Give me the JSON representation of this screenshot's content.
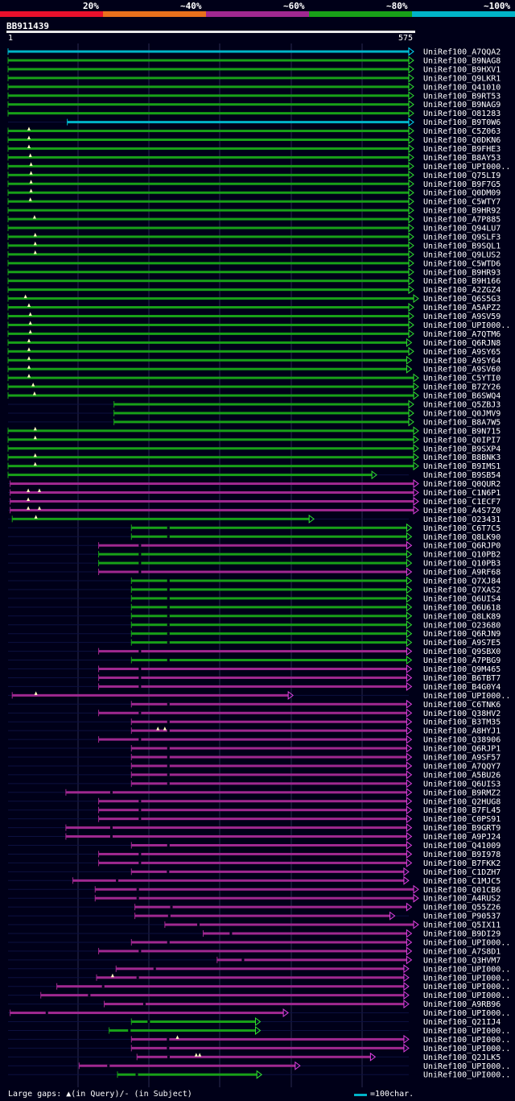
{
  "legend": [
    {
      "label": "20%",
      "color": "#e8102c"
    },
    {
      "label": "~40%",
      "color": "#e8701c"
    },
    {
      "label": "~60%",
      "color": "#a02890"
    },
    {
      "label": "~80%",
      "color": "#18a018"
    },
    {
      "label": "~100%",
      "color": "#00b4c8"
    }
  ],
  "query": {
    "name": "BB911439",
    "start": "1",
    "end": "575"
  },
  "footer": {
    "gaps_text": "Large gaps: ▲(in Query)/- (in Subject)",
    "scale_text": "=100char."
  },
  "hits": [
    {
      "name": "UniRef100_A7QQA2",
      "s": 0,
      "e": 575,
      "c": "cyan",
      "sub": 0,
      "q": []
    },
    {
      "name": "UniRef100_B9NAG8",
      "s": 0,
      "e": 575,
      "c": "green",
      "sub": 0,
      "q": []
    },
    {
      "name": "UniRef100_B9HXV1",
      "s": 0,
      "e": 575,
      "c": "green",
      "sub": 0,
      "q": []
    },
    {
      "name": "UniRef100_Q9LKR1",
      "s": 0,
      "e": 575,
      "c": "green",
      "sub": 0,
      "q": []
    },
    {
      "name": "UniRef100_Q41010",
      "s": 0,
      "e": 575,
      "c": "green",
      "sub": 0,
      "q": []
    },
    {
      "name": "UniRef100_B9RT53",
      "s": 0,
      "e": 575,
      "c": "green",
      "sub": 0,
      "q": []
    },
    {
      "name": "UniRef100_B9NAG9",
      "s": 0,
      "e": 575,
      "c": "green",
      "sub": 0,
      "q": []
    },
    {
      "name": "UniRef100_O81283",
      "s": 0,
      "e": 575,
      "c": "green",
      "sub": 0,
      "q": []
    },
    {
      "name": "UniRef100_B9T0W6",
      "s": 85,
      "e": 575,
      "c": "cyan",
      "sub": 0,
      "q": []
    },
    {
      "name": "UniRef100_C5Z063",
      "s": 0,
      "e": 575,
      "c": "green",
      "sub": 0,
      "q": [
        30
      ]
    },
    {
      "name": "UniRef100_Q0DKN6",
      "s": 0,
      "e": 575,
      "c": "green",
      "sub": 0,
      "q": [
        30
      ]
    },
    {
      "name": "UniRef100_B9FHE3",
      "s": 0,
      "e": 575,
      "c": "green",
      "sub": 0,
      "q": [
        30
      ]
    },
    {
      "name": "UniRef100_B8AY53",
      "s": 0,
      "e": 575,
      "c": "green",
      "sub": 0,
      "q": [
        32
      ]
    },
    {
      "name": "UniRef100_UPI000..",
      "s": 0,
      "e": 575,
      "c": "green",
      "sub": 0,
      "q": [
        33
      ]
    },
    {
      "name": "UniRef100_Q75LI9",
      "s": 0,
      "e": 575,
      "c": "green",
      "sub": 0,
      "q": [
        33
      ]
    },
    {
      "name": "UniRef100_B9F7G5",
      "s": 0,
      "e": 575,
      "c": "green",
      "sub": 0,
      "q": [
        33
      ]
    },
    {
      "name": "UniRef100_Q0DM09",
      "s": 0,
      "e": 575,
      "c": "green",
      "sub": 0,
      "q": [
        33
      ]
    },
    {
      "name": "UniRef100_C5WTY7",
      "s": 0,
      "e": 575,
      "c": "green",
      "sub": 0,
      "q": [
        32
      ]
    },
    {
      "name": "UniRef100_B9HR92",
      "s": 0,
      "e": 575,
      "c": "green",
      "sub": 0,
      "q": []
    },
    {
      "name": "UniRef100_A7P885",
      "s": 0,
      "e": 575,
      "c": "green",
      "sub": 0,
      "q": [
        38
      ]
    },
    {
      "name": "UniRef100_Q94LU7",
      "s": 0,
      "e": 575,
      "c": "green",
      "sub": 0,
      "q": []
    },
    {
      "name": "UniRef100_Q9SLF3",
      "s": 0,
      "e": 575,
      "c": "green",
      "sub": 0,
      "q": [
        39
      ]
    },
    {
      "name": "UniRef100_B9SQL1",
      "s": 0,
      "e": 575,
      "c": "green",
      "sub": 0,
      "q": [
        39
      ]
    },
    {
      "name": "UniRef100_Q9LUS2",
      "s": 0,
      "e": 575,
      "c": "green",
      "sub": 0,
      "q": [
        39
      ]
    },
    {
      "name": "UniRef100_C5WTD6",
      "s": 0,
      "e": 575,
      "c": "green",
      "sub": 0,
      "q": []
    },
    {
      "name": "UniRef100_B9HR93",
      "s": 0,
      "e": 575,
      "c": "green",
      "sub": 0,
      "q": []
    },
    {
      "name": "UniRef100_B9H166",
      "s": 0,
      "e": 575,
      "c": "green",
      "sub": 0,
      "q": []
    },
    {
      "name": "UniRef100_A2ZGZ4",
      "s": 0,
      "e": 575,
      "c": "green",
      "sub": 0,
      "q": []
    },
    {
      "name": "UniRef100_Q6S5G3",
      "s": 0,
      "e": 582,
      "c": "green",
      "sub": 0,
      "q": [
        25
      ]
    },
    {
      "name": "UniRef100_A5APZ2",
      "s": 0,
      "e": 575,
      "c": "green",
      "sub": 0,
      "q": [
        30
      ]
    },
    {
      "name": "UniRef100_A9SV59",
      "s": 0,
      "e": 575,
      "c": "green",
      "sub": 0,
      "q": [
        32
      ]
    },
    {
      "name": "UniRef100_UPI000..",
      "s": 0,
      "e": 575,
      "c": "green",
      "sub": 0,
      "q": [
        32
      ]
    },
    {
      "name": "UniRef100_A7QTM6",
      "s": 0,
      "e": 575,
      "c": "green",
      "sub": 0,
      "q": [
        32
      ]
    },
    {
      "name": "UniRef100_Q6RJN8",
      "s": 0,
      "e": 572,
      "c": "green",
      "sub": 0,
      "q": [
        30
      ]
    },
    {
      "name": "UniRef100_A9SY65",
      "s": 0,
      "e": 575,
      "c": "green",
      "sub": 0,
      "q": [
        30
      ]
    },
    {
      "name": "UniRef100_A9SY64",
      "s": 0,
      "e": 572,
      "c": "green",
      "sub": 0,
      "q": [
        30
      ]
    },
    {
      "name": "UniRef100_A9SV60",
      "s": 0,
      "e": 572,
      "c": "green",
      "sub": 0,
      "q": [
        30
      ]
    },
    {
      "name": "UniRef100_C5YTI0",
      "s": 0,
      "e": 582,
      "c": "green",
      "sub": 0,
      "q": [
        30
      ]
    },
    {
      "name": "UniRef100_B7ZY26",
      "s": 0,
      "e": 582,
      "c": "green",
      "sub": 0,
      "q": [
        36
      ]
    },
    {
      "name": "UniRef100_B6SWQ4",
      "s": 0,
      "e": 582,
      "c": "green",
      "sub": 0,
      "q": [
        38
      ]
    },
    {
      "name": "UniRef100_Q5ZBJ3",
      "s": 152,
      "e": 575,
      "c": "green",
      "sub": 0,
      "q": []
    },
    {
      "name": "UniRef100_Q0JMV9",
      "s": 152,
      "e": 575,
      "c": "green",
      "sub": 0,
      "q": []
    },
    {
      "name": "UniRef100_B8A7W5",
      "s": 152,
      "e": 575,
      "c": "green",
      "sub": 0,
      "q": []
    },
    {
      "name": "UniRef100_B9N715",
      "s": 0,
      "e": 582,
      "c": "green",
      "sub": 0,
      "q": [
        39
      ]
    },
    {
      "name": "UniRef100_Q0IPI7",
      "s": 0,
      "e": 582,
      "c": "green",
      "sub": 0,
      "q": [
        39
      ]
    },
    {
      "name": "UniRef100_B9SXP4",
      "s": 0,
      "e": 582,
      "c": "green",
      "sub": 0,
      "q": []
    },
    {
      "name": "UniRef100_B8BNK3",
      "s": 0,
      "e": 582,
      "c": "green",
      "sub": 0,
      "q": [
        39
      ]
    },
    {
      "name": "UniRef100_B9IMS1",
      "s": 0,
      "e": 582,
      "c": "green",
      "sub": 0,
      "q": [
        39
      ]
    },
    {
      "name": "UniRef100_B9SB54",
      "s": 0,
      "e": 522,
      "c": "green",
      "sub": 0,
      "q": []
    },
    {
      "name": "UniRef100_Q0QUR2",
      "s": 3,
      "e": 582,
      "c": "magenta",
      "sub": 0,
      "q": []
    },
    {
      "name": "UniRef100_C1N6P1",
      "s": 3,
      "e": 582,
      "c": "magenta",
      "sub": 0,
      "q": [
        29,
        45
      ]
    },
    {
      "name": "UniRef100_C1ECF7",
      "s": 3,
      "e": 582,
      "c": "magenta",
      "sub": 0,
      "q": [
        29
      ]
    },
    {
      "name": "UniRef100_A4S7Z0",
      "s": 3,
      "e": 582,
      "c": "magenta",
      "sub": 0,
      "q": [
        29,
        45
      ]
    },
    {
      "name": "UniRef100_O23431",
      "s": 6,
      "e": 432,
      "c": "green",
      "sub": 0,
      "q": [
        40
      ]
    },
    {
      "name": "UniRef100_C6T7C5",
      "s": 177,
      "e": 572,
      "c": "green",
      "sub": 1,
      "q": []
    },
    {
      "name": "UniRef100_Q8LK90",
      "s": 177,
      "e": 572,
      "c": "green",
      "sub": 1,
      "q": []
    },
    {
      "name": "UniRef100_Q6RJP0",
      "s": 130,
      "e": 572,
      "c": "magenta",
      "sub": 1,
      "q": []
    },
    {
      "name": "UniRef100_Q10PB2",
      "s": 130,
      "e": 572,
      "c": "green",
      "sub": 1,
      "q": []
    },
    {
      "name": "UniRef100_Q10PB3",
      "s": 130,
      "e": 572,
      "c": "green",
      "sub": 1,
      "q": []
    },
    {
      "name": "UniRef100_A9RF68",
      "s": 130,
      "e": 572,
      "c": "magenta",
      "sub": 1,
      "q": []
    },
    {
      "name": "UniRef100_Q7XJ84",
      "s": 177,
      "e": 572,
      "c": "green",
      "sub": 1,
      "q": []
    },
    {
      "name": "UniRef100_Q7XAS2",
      "s": 177,
      "e": 572,
      "c": "green",
      "sub": 1,
      "q": []
    },
    {
      "name": "UniRef100_Q6UIS4",
      "s": 177,
      "e": 572,
      "c": "green",
      "sub": 1,
      "q": []
    },
    {
      "name": "UniRef100_Q6U618",
      "s": 177,
      "e": 572,
      "c": "green",
      "sub": 1,
      "q": []
    },
    {
      "name": "UniRef100_Q8LK89",
      "s": 177,
      "e": 572,
      "c": "green",
      "sub": 1,
      "q": []
    },
    {
      "name": "UniRef100_O23680",
      "s": 177,
      "e": 572,
      "c": "green",
      "sub": 1,
      "q": []
    },
    {
      "name": "UniRef100_Q6RJN9",
      "s": 177,
      "e": 572,
      "c": "green",
      "sub": 1,
      "q": []
    },
    {
      "name": "UniRef100_A9S7E5",
      "s": 177,
      "e": 572,
      "c": "green",
      "sub": 1,
      "q": []
    },
    {
      "name": "UniRef100_Q9SBX0",
      "s": 130,
      "e": 572,
      "c": "magenta",
      "sub": 1,
      "q": []
    },
    {
      "name": "UniRef100_A7PBG9",
      "s": 177,
      "e": 572,
      "c": "green",
      "sub": 1,
      "q": []
    },
    {
      "name": "UniRef100_Q9M465",
      "s": 130,
      "e": 572,
      "c": "magenta",
      "sub": 1,
      "q": []
    },
    {
      "name": "UniRef100_B6TBT7",
      "s": 130,
      "e": 572,
      "c": "magenta",
      "sub": 1,
      "q": []
    },
    {
      "name": "UniRef100_B4G0Y4",
      "s": 130,
      "e": 572,
      "c": "magenta",
      "sub": 1,
      "q": []
    },
    {
      "name": "UniRef100_UPI000..",
      "s": 6,
      "e": 402,
      "c": "magenta",
      "sub": 0,
      "q": [
        40
      ]
    },
    {
      "name": "UniRef100_C6TNK6",
      "s": 177,
      "e": 572,
      "c": "magenta",
      "sub": 1,
      "q": []
    },
    {
      "name": "UniRef100_Q38HV2",
      "s": 130,
      "e": 572,
      "c": "magenta",
      "sub": 1,
      "q": []
    },
    {
      "name": "UniRef100_B3TM35",
      "s": 177,
      "e": 572,
      "c": "magenta",
      "sub": 1,
      "q": []
    },
    {
      "name": "UniRef100_A8HYJ1",
      "s": 177,
      "e": 572,
      "c": "magenta",
      "sub": 1,
      "q": [
        215,
        225
      ]
    },
    {
      "name": "UniRef100_Q38906",
      "s": 130,
      "e": 572,
      "c": "magenta",
      "sub": 1,
      "q": []
    },
    {
      "name": "UniRef100_Q6RJP1",
      "s": 177,
      "e": 572,
      "c": "magenta",
      "sub": 1,
      "q": []
    },
    {
      "name": "UniRef100_A9SF57",
      "s": 177,
      "e": 572,
      "c": "magenta",
      "sub": 1,
      "q": []
    },
    {
      "name": "UniRef100_A7QQY7",
      "s": 177,
      "e": 572,
      "c": "magenta",
      "sub": 1,
      "q": []
    },
    {
      "name": "UniRef100_A5BU26",
      "s": 177,
      "e": 572,
      "c": "magenta",
      "sub": 1,
      "q": []
    },
    {
      "name": "UniRef100_Q6UIS3",
      "s": 177,
      "e": 572,
      "c": "magenta",
      "sub": 1,
      "q": []
    },
    {
      "name": "UniRef100_B9RMZ2",
      "s": 83,
      "e": 572,
      "c": "magenta",
      "sub": 1,
      "q": []
    },
    {
      "name": "UniRef100_Q2HUG8",
      "s": 130,
      "e": 572,
      "c": "magenta",
      "sub": 1,
      "q": []
    },
    {
      "name": "UniRef100_B7FL45",
      "s": 130,
      "e": 572,
      "c": "magenta",
      "sub": 1,
      "q": []
    },
    {
      "name": "UniRef100_C0PS91",
      "s": 130,
      "e": 572,
      "c": "magenta",
      "sub": 1,
      "q": []
    },
    {
      "name": "UniRef100_B9GRT9",
      "s": 83,
      "e": 572,
      "c": "magenta",
      "sub": 1,
      "q": []
    },
    {
      "name": "UniRef100_A9PJ24",
      "s": 83,
      "e": 572,
      "c": "magenta",
      "sub": 1,
      "q": []
    },
    {
      "name": "UniRef100_Q41009",
      "s": 177,
      "e": 572,
      "c": "magenta",
      "sub": 1,
      "q": []
    },
    {
      "name": "UniRef100_B9I978",
      "s": 130,
      "e": 572,
      "c": "magenta",
      "sub": 1,
      "q": []
    },
    {
      "name": "UniRef100_B7FKK2",
      "s": 130,
      "e": 572,
      "c": "magenta",
      "sub": 1,
      "q": []
    },
    {
      "name": "UniRef100_C1DZH7",
      "s": 177,
      "e": 568,
      "c": "magenta",
      "sub": 1,
      "q": []
    },
    {
      "name": "UniRef100_C1MJC5",
      "s": 93,
      "e": 568,
      "c": "magenta",
      "sub": 1,
      "q": []
    },
    {
      "name": "UniRef100_Q01CB6",
      "s": 125,
      "e": 582,
      "c": "magenta",
      "sub": 1,
      "q": []
    },
    {
      "name": "UniRef100_A4RUS2",
      "s": 125,
      "e": 582,
      "c": "magenta",
      "sub": 1,
      "q": []
    },
    {
      "name": "UniRef100_Q55Z26",
      "s": 182,
      "e": 572,
      "c": "magenta",
      "sub": 1,
      "q": []
    },
    {
      "name": "UniRef100_P90537",
      "s": 182,
      "e": 548,
      "c": "magenta",
      "sub": 1,
      "q": []
    },
    {
      "name": "UniRef100_Q5IX11",
      "s": 225,
      "e": 582,
      "c": "magenta",
      "sub": 1,
      "q": []
    },
    {
      "name": "UniRef100_B9DI29",
      "s": 280,
      "e": 572,
      "c": "magenta",
      "sub": 1,
      "q": []
    },
    {
      "name": "UniRef100_UPI000..",
      "s": 177,
      "e": 572,
      "c": "magenta",
      "sub": 1,
      "q": []
    },
    {
      "name": "UniRef100_A7S8D1",
      "s": 130,
      "e": 572,
      "c": "magenta",
      "sub": 1,
      "q": []
    },
    {
      "name": "UniRef100_Q3HVM7",
      "s": 300,
      "e": 572,
      "c": "magenta",
      "sub": 1,
      "q": []
    },
    {
      "name": "UniRef100_UPI000..",
      "s": 155,
      "e": 568,
      "c": "magenta",
      "sub": 1,
      "q": []
    },
    {
      "name": "UniRef100_UPI000..",
      "s": 127,
      "e": 568,
      "c": "magenta",
      "sub": 1,
      "q": [
        150
      ]
    },
    {
      "name": "UniRef100_UPI000..",
      "s": 70,
      "e": 568,
      "c": "magenta",
      "sub": 1,
      "q": []
    },
    {
      "name": "UniRef100_UPI000..",
      "s": 47,
      "e": 568,
      "c": "magenta",
      "sub": 1,
      "q": []
    },
    {
      "name": "UniRef100_A9RB96",
      "s": 138,
      "e": 568,
      "c": "magenta",
      "sub": 1,
      "q": []
    },
    {
      "name": "UniRef100_UPI000..",
      "s": 3,
      "e": 395,
      "c": "magenta",
      "sub": 1,
      "q": []
    },
    {
      "name": "UniRef100_Q21IJ4",
      "s": 177,
      "e": 355,
      "c": "green",
      "sub": 1,
      "q": []
    },
    {
      "name": "UniRef100_UPI000..",
      "s": 145,
      "e": 355,
      "c": "green",
      "sub": 1,
      "q": []
    },
    {
      "name": "UniRef100_UPI000..",
      "s": 177,
      "e": 568,
      "c": "magenta",
      "sub": 1,
      "q": [
        243
      ]
    },
    {
      "name": "UniRef100_UPI000..",
      "s": 177,
      "e": 568,
      "c": "magenta",
      "sub": 1,
      "q": []
    },
    {
      "name": "UniRef100_Q2JLK5",
      "s": 185,
      "e": 520,
      "c": "magenta",
      "sub": 1,
      "q": [
        270,
        275
      ]
    },
    {
      "name": "UniRef100_UPI000..",
      "s": 102,
      "e": 412,
      "c": "magenta",
      "sub": 1,
      "q": []
    },
    {
      "name": "UniRef100_UPI000..",
      "s": 157,
      "e": 357,
      "c": "green",
      "sub": 1,
      "q": []
    }
  ]
}
